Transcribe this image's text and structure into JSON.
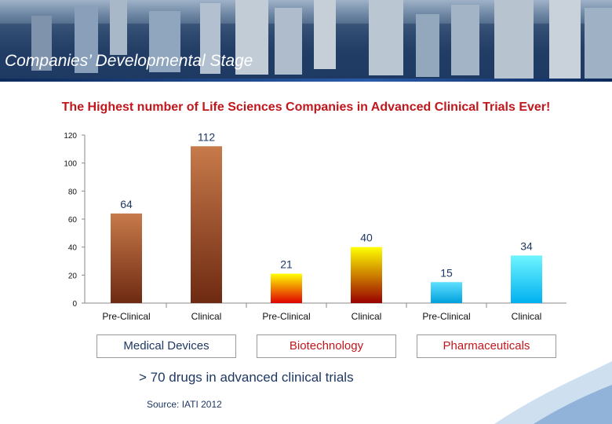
{
  "header": {
    "title": "Companies’ Developmental Stage"
  },
  "subtitle": "The Highest number of Life Sciences Companies in Advanced Clinical Trials Ever!",
  "chart_data": {
    "type": "bar",
    "title": "The Highest number of Life Sciences Companies in Advanced Clinical Trials Ever!",
    "xlabel": "",
    "ylabel": "",
    "ylim": [
      0,
      120
    ],
    "yticks": [
      0,
      20,
      40,
      60,
      80,
      100,
      120
    ],
    "categories": [
      "Pre-Clinical",
      "Clinical",
      "Pre-Clinical",
      "Clinical",
      "Pre-Clinical",
      "Clinical"
    ],
    "values": [
      64,
      112,
      21,
      40,
      15,
      34
    ],
    "groups": [
      {
        "name": "Medical Devices",
        "categories": [
          0,
          1
        ],
        "color": "#1f3864"
      },
      {
        "name": "Biotechnology",
        "categories": [
          2,
          3
        ],
        "color": "#c0161c"
      },
      {
        "name": "Pharmaceuticals",
        "categories": [
          4,
          5
        ],
        "color": "#c0161c"
      }
    ],
    "bar_colors": [
      [
        "#c77a4a",
        "#6e2a12"
      ],
      [
        "#c77a4a",
        "#6e2a12"
      ],
      [
        "#ffff00",
        "#e00000"
      ],
      [
        "#ffff00",
        "#990000"
      ],
      [
        "#5fe0ff",
        "#00a0dc"
      ],
      [
        "#6ff5ff",
        "#00b0f0"
      ]
    ],
    "grid": false,
    "legend": "none"
  },
  "footnote": "> 70 drugs in advanced clinical trials",
  "source": "Source: IATI 2012",
  "colors": {
    "title_red": "#c0161c",
    "navy": "#1f3864"
  }
}
